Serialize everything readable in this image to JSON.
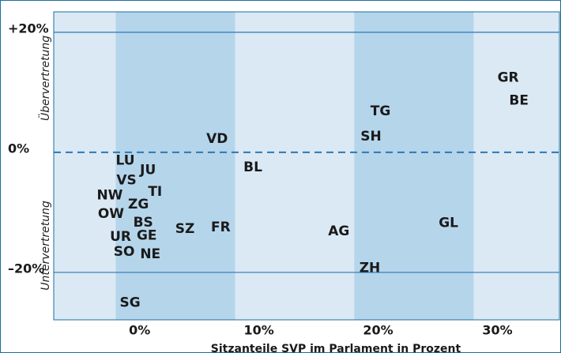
{
  "chart_data": {
    "type": "scatter",
    "x_label": "Sitzanteile SVP im Parlament in Prozent",
    "upper_label": "Übervertretung",
    "lower_label": "Untervertretung",
    "labels": [
      "GR",
      "BE",
      "TG",
      "SH",
      "VD",
      "BL",
      "LU",
      "JU",
      "VS",
      "TI",
      "NW",
      "ZG",
      "OW",
      "BS",
      "SZ",
      "FR",
      "AG",
      "GL",
      "UR",
      "GE",
      "SO",
      "NE",
      "ZH",
      "SG"
    ],
    "x": [
      30.9,
      31.8,
      20.2,
      19.4,
      6.5,
      9.5,
      -1.2,
      0.7,
      -1.1,
      1.3,
      -2.5,
      -0.1,
      -2.4,
      0.3,
      3.8,
      6.8,
      16.7,
      25.9,
      -1.6,
      0.6,
      -1.3,
      0.9,
      19.3,
      -0.8
    ],
    "values": [
      12.4,
      8.6,
      6.8,
      2.6,
      2.2,
      -2.5,
      -1.4,
      -3.0,
      -4.7,
      -6.6,
      -7.2,
      -8.7,
      -10.3,
      -11.7,
      -12.8,
      -12.5,
      -13.2,
      -11.8,
      -14.1,
      -13.9,
      -16.6,
      -17.0,
      -19.3,
      -25.1
    ],
    "xlim": [
      -7.2,
      35.2
    ],
    "ylim": [
      -27.9,
      23.4
    ],
    "xticks": [
      {
        "value": 0,
        "label": "0%"
      },
      {
        "value": 10,
        "label": "10%"
      },
      {
        "value": 20,
        "label": "20%"
      },
      {
        "value": 30,
        "label": "30%"
      }
    ],
    "yticks": [
      {
        "value": 20,
        "label": "+20%"
      },
      {
        "value": 0,
        "label": "0%"
      },
      {
        "value": -20,
        "label": "–20%"
      }
    ],
    "bands": [
      [
        -2,
        8
      ],
      [
        18,
        28
      ]
    ],
    "grid": true,
    "background_color": "#dbe9f4",
    "band_color": "#b5d5eb",
    "line_color": "#2a78b4"
  }
}
